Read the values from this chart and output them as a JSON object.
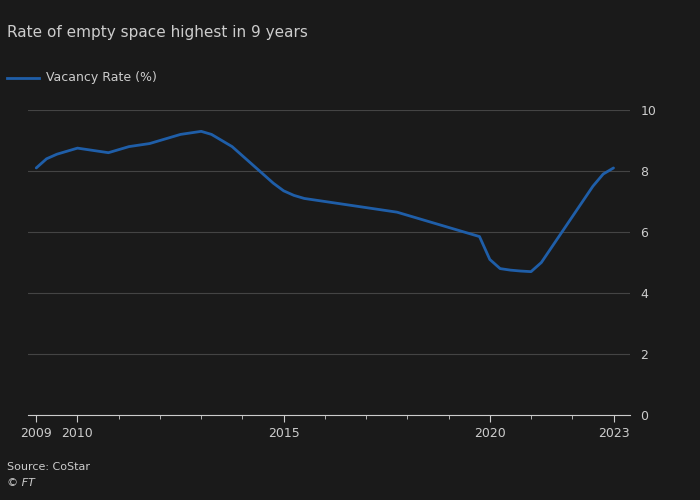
{
  "title": "Rate of empty space highest in 9 years",
  "legend_label": "Vacancy Rate (%)",
  "source": "Source: CoStar",
  "ft_label": "© FT",
  "line_color": "#1f5ea8",
  "background_color": "#1a1a1a",
  "plot_bg_color": "#1a1a1a",
  "text_color": "#cccccc",
  "grid_color": "#444444",
  "ylabel": "",
  "ylim": [
    0,
    10
  ],
  "yticks": [
    0,
    2,
    4,
    6,
    8,
    10
  ],
  "x": [
    2009.0,
    2009.25,
    2009.5,
    2009.75,
    2010.0,
    2010.25,
    2010.5,
    2010.75,
    2011.0,
    2011.25,
    2011.5,
    2011.75,
    2012.0,
    2012.25,
    2012.5,
    2012.75,
    2013.0,
    2013.25,
    2013.5,
    2013.75,
    2014.0,
    2014.25,
    2014.5,
    2014.75,
    2015.0,
    2015.25,
    2015.5,
    2015.75,
    2016.0,
    2016.25,
    2016.5,
    2016.75,
    2017.0,
    2017.25,
    2017.5,
    2017.75,
    2018.0,
    2018.25,
    2018.5,
    2018.75,
    2019.0,
    2019.25,
    2019.5,
    2019.75,
    2020.0,
    2020.25,
    2020.5,
    2020.75,
    2021.0,
    2021.25,
    2021.5,
    2021.75,
    2022.0,
    2022.25,
    2022.5,
    2022.75,
    2023.0
  ],
  "y": [
    8.1,
    8.4,
    8.55,
    8.65,
    8.75,
    8.7,
    8.65,
    8.6,
    8.7,
    8.8,
    8.85,
    8.9,
    9.0,
    9.1,
    9.2,
    9.25,
    9.3,
    9.2,
    9.0,
    8.8,
    8.5,
    8.2,
    7.9,
    7.6,
    7.35,
    7.2,
    7.1,
    7.05,
    7.0,
    6.95,
    6.9,
    6.85,
    6.8,
    6.75,
    6.7,
    6.65,
    6.55,
    6.45,
    6.35,
    6.25,
    6.15,
    6.05,
    5.95,
    5.85,
    5.1,
    4.8,
    4.75,
    4.72,
    4.7,
    5.0,
    5.5,
    6.0,
    6.5,
    7.0,
    7.5,
    7.9,
    8.1
  ],
  "xticks": [
    2009,
    2010,
    2015,
    2020,
    2023
  ],
  "xlim": [
    2008.8,
    2023.4
  ],
  "line_width": 2.0,
  "title_fontsize": 11,
  "label_fontsize": 9,
  "tick_fontsize": 9,
  "source_fontsize": 8
}
